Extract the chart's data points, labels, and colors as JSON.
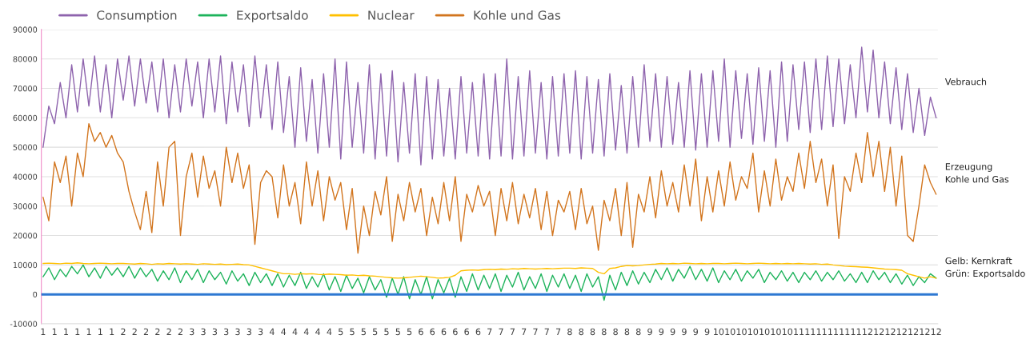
{
  "chart_data": {
    "type": "line",
    "categories": [
      "1",
      null,
      "1",
      null,
      "1",
      null,
      "1",
      null,
      "1",
      null,
      "1",
      null,
      "1",
      null,
      "2",
      null,
      "2",
      null,
      "2",
      null,
      "2",
      null,
      "2",
      null,
      "2",
      null,
      "3",
      null,
      "3",
      null,
      "3",
      null,
      "3",
      null,
      "3",
      null,
      "3",
      null,
      "3",
      null,
      "4",
      null,
      "4",
      null,
      "4",
      null,
      "4",
      null,
      "4",
      null,
      "4",
      null,
      "5",
      null,
      "5",
      null,
      "5",
      null,
      "5",
      null,
      "5",
      null,
      "5",
      null,
      "5",
      null,
      "6",
      null,
      "6",
      null,
      "6",
      null,
      "6",
      null,
      "6",
      null,
      "6",
      null,
      "7",
      null,
      "7",
      null,
      "7",
      null,
      "7",
      null,
      "7",
      null,
      "7",
      null,
      "7",
      null,
      "8",
      null,
      "8",
      null,
      "8",
      null,
      "8",
      null,
      "8",
      null,
      "8",
      null,
      "8",
      null,
      "9",
      null,
      "9",
      null,
      "9",
      null,
      "9",
      null,
      "9",
      null,
      "9",
      null,
      "10",
      null,
      "10",
      null,
      "10",
      null,
      "10",
      null,
      "10",
      null,
      "10",
      null,
      "10",
      null,
      "11",
      null,
      "11",
      null,
      "11",
      null,
      "11",
      null,
      "11",
      null,
      "11",
      null,
      "12",
      null,
      "12",
      null,
      "12",
      null,
      "12",
      null,
      "12",
      null,
      "12",
      null,
      "12"
    ],
    "series": [
      {
        "name": "Consumption",
        "color": "#8e63ad",
        "values": [
          50000,
          64000,
          58000,
          72000,
          60000,
          78000,
          62000,
          80000,
          64000,
          81000,
          62000,
          78000,
          60000,
          80000,
          66000,
          81000,
          64000,
          80000,
          65000,
          79000,
          62000,
          80000,
          60000,
          78000,
          62000,
          80000,
          64000,
          79000,
          60000,
          80000,
          62000,
          81000,
          58000,
          79000,
          62000,
          78000,
          57000,
          81000,
          60000,
          78000,
          56000,
          79000,
          55000,
          74000,
          50000,
          77000,
          52000,
          73000,
          48000,
          75000,
          50000,
          80000,
          46000,
          79000,
          50000,
          72000,
          48000,
          78000,
          46000,
          75000,
          47000,
          76000,
          45000,
          72000,
          48000,
          75000,
          44000,
          74000,
          46000,
          73000,
          47000,
          70000,
          46000,
          74000,
          48000,
          72000,
          47000,
          75000,
          46000,
          75000,
          47000,
          80000,
          46000,
          74000,
          47000,
          76000,
          48000,
          72000,
          46000,
          74000,
          47000,
          75000,
          48000,
          76000,
          46000,
          74000,
          48000,
          73000,
          47000,
          75000,
          49000,
          71000,
          48000,
          74000,
          50000,
          78000,
          52000,
          75000,
          50000,
          74000,
          51000,
          72000,
          50000,
          76000,
          49000,
          75000,
          50000,
          76000,
          52000,
          80000,
          50000,
          76000,
          53000,
          75000,
          51000,
          77000,
          52000,
          76000,
          50000,
          79000,
          52000,
          78000,
          56000,
          79000,
          55000,
          80000,
          56000,
          81000,
          57000,
          80000,
          58000,
          78000,
          60000,
          84000,
          62000,
          83000,
          60000,
          79000,
          58000,
          77000,
          56000,
          75000,
          55000,
          70000,
          54000,
          67000,
          60000
        ]
      },
      {
        "name": "Exportsaldo",
        "color": "#1db35b",
        "values": [
          6000,
          9000,
          5000,
          8500,
          6000,
          9500,
          7000,
          10000,
          6000,
          9000,
          5500,
          9500,
          6500,
          9000,
          6000,
          9500,
          5500,
          9000,
          6000,
          8500,
          4500,
          8000,
          5000,
          9000,
          4000,
          8000,
          5000,
          8500,
          4000,
          8000,
          5000,
          7500,
          3500,
          8000,
          4500,
          7000,
          3000,
          7500,
          4000,
          7000,
          3000,
          7000,
          2500,
          6500,
          3000,
          7500,
          2000,
          6000,
          2500,
          7000,
          1500,
          6000,
          1000,
          6500,
          2000,
          5500,
          500,
          6000,
          1500,
          5000,
          -1000,
          5500,
          0,
          6000,
          -1500,
          5000,
          0,
          6000,
          -1500,
          5000,
          500,
          5500,
          -1000,
          6000,
          1000,
          7000,
          1500,
          6500,
          2000,
          7000,
          1000,
          6500,
          2500,
          7500,
          1500,
          6000,
          2000,
          7000,
          1000,
          6500,
          2500,
          7000,
          2000,
          6500,
          1000,
          7000,
          2500,
          6000,
          -2000,
          6500,
          1500,
          7500,
          3000,
          8000,
          3500,
          7500,
          4000,
          8500,
          5000,
          9000,
          4500,
          8500,
          5500,
          9500,
          5000,
          8500,
          4500,
          9000,
          4000,
          8000,
          5000,
          8500,
          4500,
          8000,
          5500,
          8500,
          4000,
          7500,
          5000,
          8000,
          4500,
          7500,
          4000,
          7500,
          5000,
          8000,
          4500,
          7500,
          5000,
          8000,
          4500,
          7000,
          4000,
          7500,
          4000,
          8000,
          5000,
          7500,
          4000,
          7000,
          3500,
          6500,
          3000,
          6000,
          4000,
          7000,
          5500
        ]
      },
      {
        "name": "Nuclear",
        "color": "#ffc000",
        "values": [
          10500,
          10600,
          10500,
          10400,
          10600,
          10500,
          10700,
          10500,
          10400,
          10500,
          10600,
          10500,
          10400,
          10500,
          10500,
          10400,
          10300,
          10500,
          10400,
          10200,
          10400,
          10300,
          10500,
          10400,
          10300,
          10400,
          10300,
          10200,
          10400,
          10300,
          10200,
          10300,
          10100,
          10200,
          10300,
          10100,
          10000,
          9500,
          9000,
          8500,
          8000,
          7500,
          7000,
          7000,
          6800,
          7000,
          6900,
          7000,
          6800,
          6700,
          6900,
          6800,
          6700,
          6500,
          6600,
          6400,
          6500,
          6300,
          6200,
          6000,
          5800,
          5600,
          5500,
          5600,
          5800,
          6000,
          6200,
          6000,
          5800,
          5500,
          5600,
          5800,
          6500,
          8000,
          8200,
          8300,
          8200,
          8400,
          8500,
          8400,
          8600,
          8500,
          8700,
          8600,
          8800,
          8700,
          8600,
          8700,
          8800,
          8700,
          8800,
          8900,
          8900,
          8800,
          9000,
          8900,
          8800,
          7500,
          7000,
          8800,
          9000,
          9500,
          9800,
          9700,
          9800,
          10000,
          10200,
          10300,
          10500,
          10400,
          10500,
          10400,
          10600,
          10500,
          10400,
          10500,
          10400,
          10500,
          10500,
          10400,
          10500,
          10600,
          10500,
          10400,
          10500,
          10600,
          10500,
          10400,
          10500,
          10400,
          10500,
          10400,
          10500,
          10400,
          10300,
          10400,
          10200,
          10300,
          10000,
          9800,
          9600,
          9500,
          9400,
          9300,
          9200,
          9000,
          8800,
          8600,
          8500,
          8400,
          8200,
          7000,
          6500,
          6000,
          5500,
          6000,
          5500
        ]
      },
      {
        "name": "Kohle und Gas",
        "color": "#d2751e",
        "values": [
          33000,
          25000,
          45000,
          38000,
          47000,
          30000,
          48000,
          40000,
          58000,
          52000,
          55000,
          50000,
          54000,
          48000,
          45000,
          35000,
          28000,
          22000,
          35000,
          21000,
          45000,
          30000,
          50000,
          52000,
          20000,
          40000,
          48000,
          33000,
          47000,
          36000,
          42000,
          30000,
          50000,
          38000,
          48000,
          36000,
          44000,
          17000,
          38000,
          42000,
          40000,
          26000,
          44000,
          30000,
          38000,
          24000,
          45000,
          30000,
          42000,
          25000,
          40000,
          32000,
          38000,
          22000,
          36000,
          14000,
          30000,
          20000,
          35000,
          27000,
          40000,
          18000,
          34000,
          25000,
          38000,
          28000,
          36000,
          20000,
          33000,
          24000,
          38000,
          25000,
          40000,
          18000,
          34000,
          28000,
          37000,
          30000,
          35000,
          20000,
          36000,
          25000,
          38000,
          24000,
          34000,
          26000,
          36000,
          22000,
          35000,
          20000,
          32000,
          28000,
          35000,
          22000,
          36000,
          24000,
          30000,
          15000,
          32000,
          25000,
          36000,
          20000,
          38000,
          16000,
          34000,
          28000,
          40000,
          26000,
          42000,
          30000,
          38000,
          28000,
          44000,
          30000,
          46000,
          25000,
          40000,
          28000,
          42000,
          30000,
          45000,
          32000,
          40000,
          36000,
          48000,
          28000,
          42000,
          30000,
          46000,
          32000,
          40000,
          35000,
          48000,
          36000,
          52000,
          38000,
          46000,
          30000,
          44000,
          19000,
          40000,
          35000,
          48000,
          38000,
          55000,
          40000,
          52000,
          35000,
          50000,
          30000,
          47000,
          20000,
          18000,
          30000,
          44000,
          38000,
          34000
        ]
      }
    ],
    "ylim": [
      -10000,
      90000
    ],
    "yticks": [
      -10000,
      0,
      10000,
      20000,
      30000,
      40000,
      50000,
      60000,
      70000,
      80000,
      90000
    ],
    "ref_lines": [
      {
        "axis": "y",
        "value": 0,
        "color": "#2e78d2"
      }
    ],
    "annotations": [
      "Vebrauch",
      "Erzeugung\nKohle und Gas",
      "Gelb: Kernkraft\nGrün: Exportsaldo"
    ],
    "grid": "y",
    "legend": "top",
    "marker": "none",
    "line_style": "solid"
  }
}
